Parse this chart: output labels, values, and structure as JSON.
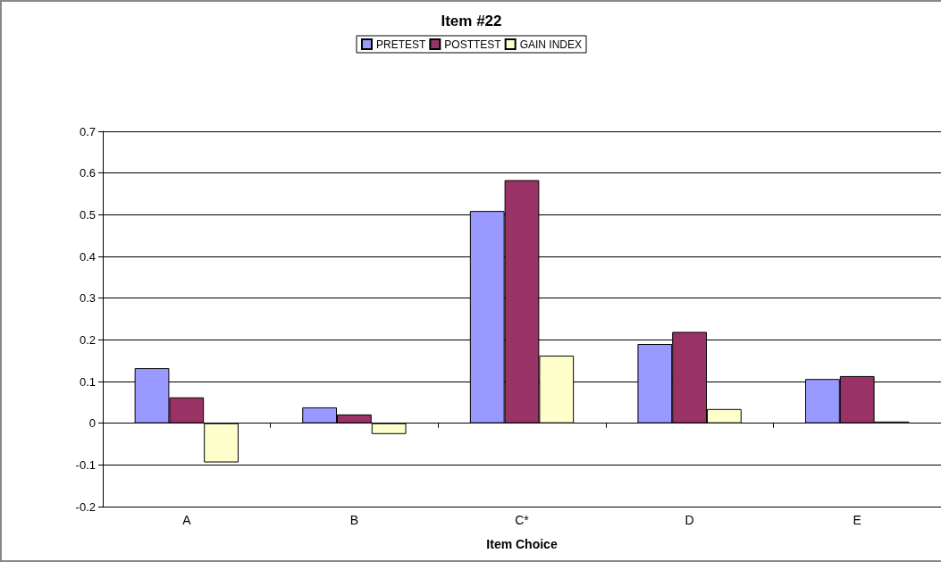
{
  "chart_data": {
    "type": "bar",
    "title": "Item #22",
    "xlabel": "Item Choice",
    "categories": [
      "A",
      "B",
      "C*",
      "D",
      "E"
    ],
    "series": [
      {
        "name": "PRETEST",
        "color": "#9999ff",
        "values": [
          0.132,
          0.038,
          0.509,
          0.19,
          0.106
        ]
      },
      {
        "name": "POSTTEST",
        "color": "#993366",
        "values": [
          0.062,
          0.021,
          0.583,
          0.219,
          0.113
        ]
      },
      {
        "name": "GAIN INDEX",
        "color": "#ffffcc",
        "values": [
          -0.094,
          -0.026,
          0.162,
          0.034,
          0.004
        ]
      }
    ],
    "ylim": [
      -0.2,
      0.7
    ],
    "yticks": [
      -0.2,
      -0.1,
      0,
      0.1,
      0.2,
      0.3,
      0.4,
      0.5,
      0.6,
      0.7
    ],
    "grid": "y",
    "legend": "top"
  }
}
